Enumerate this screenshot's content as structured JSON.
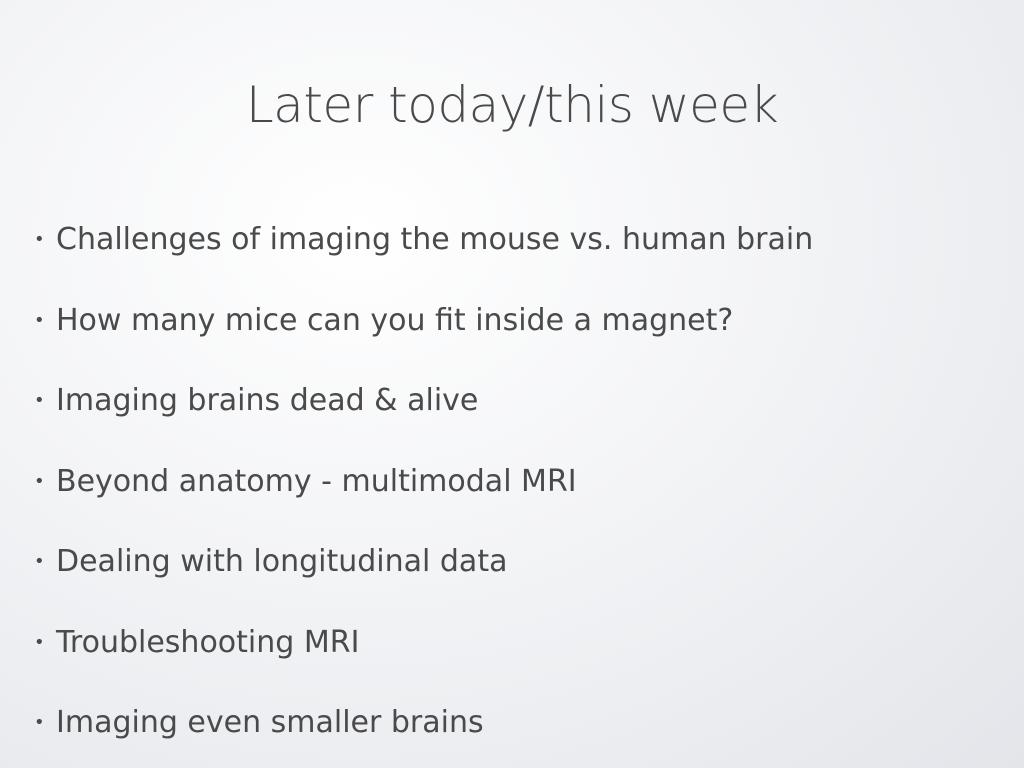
{
  "slide": {
    "title": "Later today/this week",
    "bullets": [
      "Challenges of imaging the mouse vs. human brain",
      "How many mice can you fit inside a magnet?",
      "Imaging brains dead & alive",
      "Beyond anatomy - multimodal MRI",
      "Dealing with longitudinal data",
      "Troubleshooting MRI",
      "Imaging even smaller brains"
    ],
    "bullet_glyph": "•"
  },
  "colors": {
    "text": "#4a4a4a",
    "background": "#f0f1f4"
  }
}
